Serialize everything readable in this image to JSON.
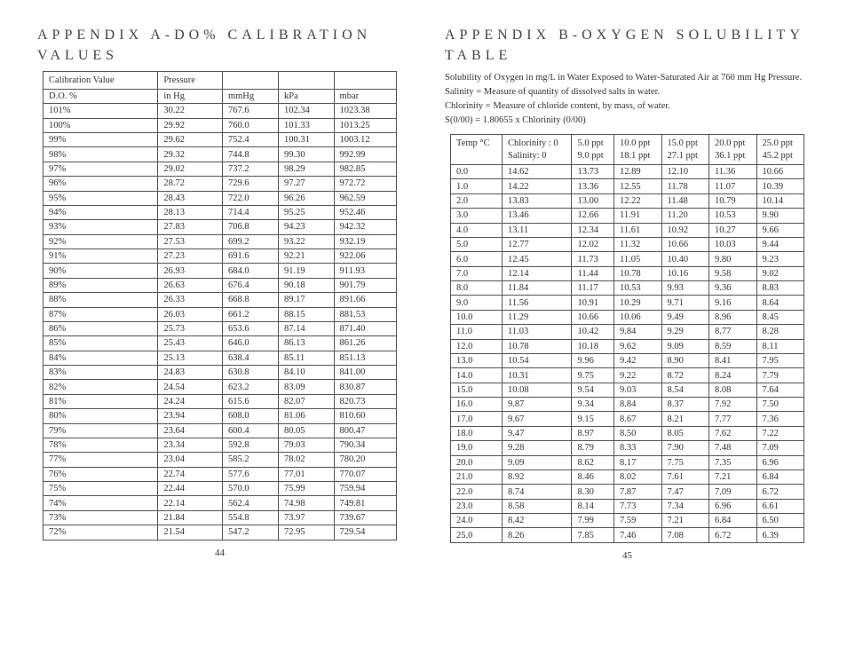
{
  "left": {
    "title": "APPENDIX A-DO% CALIBRATION VALUES",
    "pagenum": "44",
    "table": {
      "header1": [
        "Calibration Value",
        "Pressure",
        "",
        "",
        ""
      ],
      "header2": [
        "D.O. %",
        "in Hg",
        "mmHg",
        "kPa",
        "mbar"
      ],
      "rows": [
        [
          "101%",
          "30.22",
          "767.6",
          "102.34",
          "1023.38"
        ],
        [
          "100%",
          "29.92",
          "760.0",
          "101.33",
          "1013.25"
        ],
        [
          "99%",
          "29.62",
          "752.4",
          "100.31",
          "1003.12"
        ],
        [
          "98%",
          "29.32",
          "744.8",
          "99.30",
          "992.99"
        ],
        [
          "97%",
          "29.02",
          "737.2",
          "98.29",
          "982.85"
        ],
        [
          "96%",
          "28.72",
          "729.6",
          "97.27",
          "972.72"
        ],
        [
          "95%",
          "28.43",
          "722.0",
          "96.26",
          "962.59"
        ],
        [
          "94%",
          "28.13",
          "714.4",
          "95.25",
          "952.46"
        ],
        [
          "93%",
          "27.83",
          "706.8",
          "94.23",
          "942.32"
        ],
        [
          "92%",
          "27.53",
          "699.2",
          "93.22",
          "932.19"
        ],
        [
          "91%",
          "27.23",
          "691.6",
          "92.21",
          "922.06"
        ],
        [
          "90%",
          "26.93",
          "684.0",
          "91.19",
          "911.93"
        ],
        [
          "89%",
          "26.63",
          "676.4",
          "90.18",
          "901.79"
        ],
        [
          "88%",
          "26.33",
          "668.8",
          "89.17",
          "891.66"
        ],
        [
          "87%",
          "26.03",
          "661.2",
          "88.15",
          "881.53"
        ],
        [
          "86%",
          "25.73",
          "653.6",
          "87.14",
          "871.40"
        ],
        [
          "85%",
          "25.43",
          "646.0",
          "86.13",
          "861.26"
        ],
        [
          "84%",
          "25.13",
          "638.4",
          "85.11",
          "851.13"
        ],
        [
          "83%",
          "24.83",
          "630.8",
          "84.10",
          "841.00"
        ],
        [
          "82%",
          "24.54",
          "623.2",
          "83.09",
          "830.87"
        ],
        [
          "81%",
          "24.24",
          "615.6",
          "82.07",
          "820.73"
        ],
        [
          "80%",
          "23.94",
          "608.0",
          "81.06",
          "810.60"
        ],
        [
          "79%",
          "23.64",
          "600.4",
          "80.05",
          "800.47"
        ],
        [
          "78%",
          "23.34",
          "592.8",
          "79.03",
          "790.34"
        ],
        [
          "77%",
          "23.04",
          "585.2",
          "78.02",
          "780.20"
        ],
        [
          "76%",
          "22.74",
          "577.6",
          "77.01",
          "770.07"
        ],
        [
          "75%",
          "22.44",
          "570.0",
          "75.99",
          "759.94"
        ],
        [
          "74%",
          "22.14",
          "562.4",
          "74.98",
          "749.81"
        ],
        [
          "73%",
          "21.84",
          "554.8",
          "73.97",
          "739.67"
        ],
        [
          "72%",
          "21.54",
          "547.2",
          "72.95",
          "729.54"
        ]
      ]
    }
  },
  "right": {
    "title": "APPENDIX B-OXYGEN SOLUBILITY TABLE",
    "pagenum": "45",
    "intro_l1": "Solubility of Oxygen in mg/L in Water Exposed to Water-Saturated Air at 760 mm Hg Pressure.",
    "intro_l2": "Salinity = Measure of quantity of dissolved salts in water.",
    "intro_l3": "Chlorinity = Measure of chloride content, by mass, of water.",
    "intro_l4": "S(0/00) = 1.80655 x Chlorinity (0/00)",
    "table": {
      "header": [
        "Temp °C",
        "Chlorinity : 0\nSalinity: 0",
        "5.0 ppt\n9.0 ppt",
        "10.0 ppt\n18.1 ppt",
        "15.0 ppt\n27.1 ppt",
        "20.0 ppt\n36.1 ppt",
        "25.0 ppt\n45.2 ppt"
      ],
      "rows": [
        [
          "0.0",
          "14.62",
          "13.73",
          "12.89",
          "12.10",
          "11.36",
          "10.66"
        ],
        [
          "1.0",
          "14.22",
          "13.36",
          "12.55",
          "11.78",
          "11.07",
          "10.39"
        ],
        [
          "2.0",
          "13.83",
          "13.00",
          "12.22",
          "11.48",
          "10.79",
          "10.14"
        ],
        [
          "3.0",
          "13.46",
          "12.66",
          "11.91",
          "11.20",
          "10.53",
          "9.90"
        ],
        [
          "4.0",
          "13.11",
          "12.34",
          "11.61",
          "10.92",
          "10.27",
          "9.66"
        ],
        [
          "5.0",
          "12.77",
          "12.02",
          "11.32",
          "10.66",
          "10.03",
          "9.44"
        ],
        [
          "6.0",
          "12.45",
          "11.73",
          "11.05",
          "10.40",
          "9.80",
          "9.23"
        ],
        [
          "7.0",
          "12.14",
          "11.44",
          "10.78",
          "10.16",
          "9.58",
          "9.02"
        ],
        [
          "8.0",
          "11.84",
          "11.17",
          "10.53",
          "9.93",
          "9.36",
          "8.83"
        ],
        [
          "9.0",
          "11.56",
          "10.91",
          "10.29",
          "9.71",
          "9.16",
          "8.64"
        ],
        [
          "10.0",
          "11.29",
          "10.66",
          "10.06",
          "9.49",
          "8.96",
          "8.45"
        ],
        [
          "11.0",
          "11.03",
          "10.42",
          "9.84",
          "9.29",
          "8.77",
          "8.28"
        ],
        [
          "12.0",
          "10.78",
          "10.18",
          "9.62",
          "9.09",
          "8.59",
          "8.11"
        ],
        [
          "13.0",
          "10.54",
          "9.96",
          "9.42",
          "8.90",
          "8.41",
          "7.95"
        ],
        [
          "14.0",
          "10.31",
          "9.75",
          "9.22",
          "8.72",
          "8.24",
          "7.79"
        ],
        [
          "15.0",
          "10.08",
          "9.54",
          "9.03",
          "8.54",
          "8.08",
          "7.64"
        ],
        [
          "16.0",
          "9.87",
          "9.34",
          "8.84",
          "8.37",
          "7.92",
          "7.50"
        ],
        [
          "17.0",
          "9.67",
          "9.15",
          "8.67",
          "8.21",
          "7.77",
          "7.36"
        ],
        [
          "18.0",
          "9.47",
          "8.97",
          "8.50",
          "8.05",
          "7.62",
          "7.22"
        ],
        [
          "19.0",
          "9.28",
          "8.79",
          "8.33",
          "7.90",
          "7.48",
          "7.09"
        ],
        [
          "20.0",
          "9.09",
          "8.62",
          "8.17",
          "7.75",
          "7.35",
          "6.96"
        ],
        [
          "21.0",
          "8.92",
          "8.46",
          "8.02",
          "7.61",
          "7.21",
          "6.84"
        ],
        [
          "22.0",
          "8.74",
          "8.30",
          "7.87",
          "7.47",
          "7.09",
          "6.72"
        ],
        [
          "23.0",
          "8.58",
          "8.14",
          "7.73",
          "7.34",
          "6.96",
          "6.61"
        ],
        [
          "24.0",
          "8.42",
          "7.99",
          "7.59",
          "7.21",
          "6.84",
          "6.50"
        ],
        [
          "25.0",
          "8.26",
          "7.85",
          "7.46",
          "7.08",
          "6.72",
          "6.39"
        ]
      ]
    }
  },
  "colors": {
    "text": "#333333",
    "border": "#555555",
    "bg": "#ffffff"
  }
}
